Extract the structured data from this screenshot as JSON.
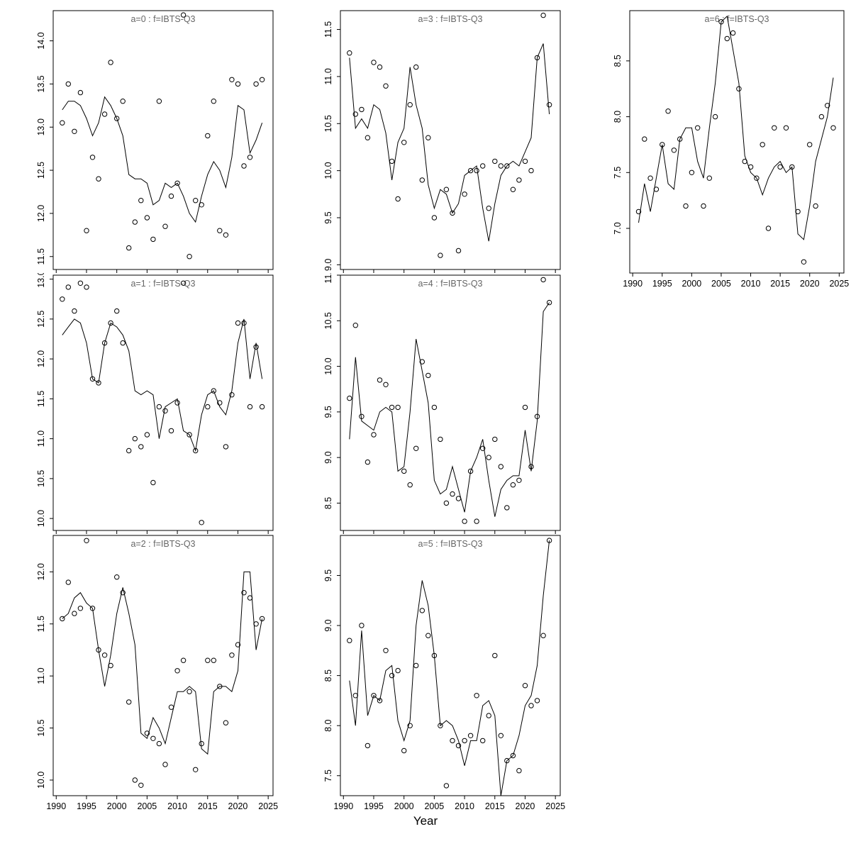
{
  "page": {
    "xlabel": "Year"
  },
  "style": {
    "point_color": "#000000",
    "line_color": "#000000",
    "title_color": "#666666",
    "axis_color": "#000000"
  },
  "chart_data": [
    {
      "type": "scatter",
      "title": "a=0  :  f=IBTS-Q3",
      "xlabel": "Year",
      "xlim": [
        1989.5,
        2025.8
      ],
      "xticks": [
        1990,
        1995,
        2000,
        2005,
        2010,
        2015,
        2020,
        2025
      ],
      "ylim": [
        11.35,
        14.35
      ],
      "yticks": [
        11.5,
        12.0,
        12.5,
        13.0,
        13.5,
        14.0
      ],
      "grid": false,
      "legend": "none",
      "x": [
        1991,
        1992,
        1993,
        1994,
        1995,
        1996,
        1997,
        1998,
        1999,
        2000,
        2001,
        2002,
        2003,
        2004,
        2005,
        2006,
        2007,
        2008,
        2009,
        2010,
        2011,
        2012,
        2013,
        2014,
        2015,
        2016,
        2017,
        2018,
        2019,
        2020,
        2021,
        2022,
        2023,
        2024
      ],
      "series": [
        {
          "name": "observed-index",
          "style": "points",
          "values": [
            13.05,
            13.5,
            12.95,
            13.4,
            11.8,
            12.65,
            12.4,
            13.15,
            13.75,
            13.1,
            13.3,
            11.6,
            11.9,
            12.15,
            11.95,
            11.7,
            13.3,
            11.85,
            12.2,
            12.35,
            14.3,
            11.5,
            12.15,
            12.1,
            12.9,
            13.3,
            11.8,
            11.75,
            13.55,
            13.5,
            12.55,
            12.65,
            13.5,
            13.55
          ]
        },
        {
          "name": "fitted-line",
          "style": "line",
          "values": [
            13.2,
            13.3,
            13.3,
            13.25,
            13.1,
            12.9,
            13.05,
            13.35,
            13.25,
            13.1,
            12.9,
            12.45,
            12.4,
            12.4,
            12.35,
            12.1,
            12.15,
            12.35,
            12.3,
            12.35,
            12.2,
            12.0,
            11.9,
            12.2,
            12.45,
            12.6,
            12.5,
            12.3,
            12.65,
            13.25,
            13.2,
            12.7,
            12.85,
            13.05
          ]
        }
      ]
    },
    {
      "type": "scatter",
      "title": "a=1  :  f=IBTS-Q3",
      "xlabel": "Year",
      "xlim": [
        1989.5,
        2025.8
      ],
      "xticks": [
        1990,
        1995,
        2000,
        2005,
        2010,
        2015,
        2020,
        2025
      ],
      "ylim": [
        9.85,
        13.05
      ],
      "yticks": [
        10.0,
        10.5,
        11.0,
        11.5,
        12.0,
        12.5,
        13.0
      ],
      "grid": false,
      "legend": "none",
      "x": [
        1991,
        1992,
        1993,
        1994,
        1995,
        1996,
        1997,
        1998,
        1999,
        2000,
        2001,
        2002,
        2003,
        2004,
        2005,
        2006,
        2007,
        2008,
        2009,
        2010,
        2011,
        2012,
        2013,
        2014,
        2015,
        2016,
        2017,
        2018,
        2019,
        2020,
        2021,
        2022,
        2023,
        2024
      ],
      "series": [
        {
          "name": "observed-index",
          "style": "points",
          "values": [
            12.75,
            12.9,
            12.6,
            12.95,
            12.9,
            11.75,
            11.7,
            12.2,
            12.45,
            12.6,
            12.2,
            10.85,
            11.0,
            10.9,
            11.05,
            10.45,
            11.4,
            11.35,
            11.1,
            11.45,
            12.95,
            11.05,
            10.85,
            9.95,
            11.4,
            11.6,
            11.45,
            10.9,
            11.55,
            12.45,
            12.45,
            11.4,
            12.15,
            11.4
          ]
        },
        {
          "name": "fitted-line",
          "style": "line",
          "values": [
            12.3,
            12.4,
            12.5,
            12.45,
            12.2,
            11.75,
            11.7,
            12.2,
            12.45,
            12.4,
            12.3,
            12.1,
            11.6,
            11.55,
            11.6,
            11.55,
            11.0,
            11.4,
            11.45,
            11.5,
            11.1,
            11.05,
            10.85,
            11.3,
            11.55,
            11.6,
            11.4,
            11.3,
            11.6,
            12.2,
            12.5,
            11.75,
            12.2,
            11.75
          ]
        }
      ]
    },
    {
      "type": "scatter",
      "title": "a=2  :  f=IBTS-Q3",
      "xlabel": "Year",
      "xlim": [
        1989.5,
        2025.8
      ],
      "xticks": [
        1990,
        1995,
        2000,
        2005,
        2010,
        2015,
        2020,
        2025
      ],
      "ylim": [
        9.85,
        12.35
      ],
      "yticks": [
        10.0,
        10.5,
        11.0,
        11.5,
        12.0
      ],
      "grid": false,
      "legend": "none",
      "x": [
        1991,
        1992,
        1993,
        1994,
        1995,
        1996,
        1997,
        1998,
        1999,
        2000,
        2001,
        2002,
        2003,
        2004,
        2005,
        2006,
        2007,
        2008,
        2009,
        2010,
        2011,
        2012,
        2013,
        2014,
        2015,
        2016,
        2017,
        2018,
        2019,
        2020,
        2021,
        2022,
        2023,
        2024
      ],
      "series": [
        {
          "name": "observed-index",
          "style": "points",
          "values": [
            11.55,
            11.9,
            11.6,
            11.65,
            12.3,
            11.65,
            11.25,
            11.2,
            11.1,
            11.95,
            11.8,
            10.75,
            10.0,
            9.95,
            10.45,
            10.4,
            10.35,
            10.15,
            10.7,
            11.05,
            11.15,
            10.85,
            10.1,
            10.35,
            11.15,
            11.15,
            10.9,
            10.55,
            11.2,
            11.3,
            11.8,
            11.75,
            11.5,
            11.55
          ]
        },
        {
          "name": "fitted-line",
          "style": "line",
          "values": [
            11.55,
            11.6,
            11.75,
            11.8,
            11.7,
            11.65,
            11.25,
            10.9,
            11.2,
            11.6,
            11.85,
            11.6,
            11.3,
            10.45,
            10.4,
            10.6,
            10.5,
            10.35,
            10.6,
            10.85,
            10.85,
            10.9,
            10.85,
            10.3,
            10.25,
            10.85,
            10.9,
            10.9,
            10.85,
            11.05,
            12.0,
            12.0,
            11.25,
            11.55
          ]
        }
      ]
    },
    {
      "type": "scatter",
      "title": "a=3  :  f=IBTS-Q3",
      "xlabel": "Year",
      "xlim": [
        1989.5,
        2025.8
      ],
      "xticks": [
        1990,
        1995,
        2000,
        2005,
        2010,
        2015,
        2020,
        2025
      ],
      "ylim": [
        8.95,
        11.7
      ],
      "yticks": [
        9.0,
        9.5,
        10.0,
        10.5,
        11.0,
        11.5
      ],
      "grid": false,
      "legend": "none",
      "x": [
        1991,
        1992,
        1993,
        1994,
        1995,
        1996,
        1997,
        1998,
        1999,
        2000,
        2001,
        2002,
        2003,
        2004,
        2005,
        2006,
        2007,
        2008,
        2009,
        2010,
        2011,
        2012,
        2013,
        2014,
        2015,
        2016,
        2017,
        2018,
        2019,
        2020,
        2021,
        2022,
        2023,
        2024
      ],
      "series": [
        {
          "name": "observed-index",
          "style": "points",
          "values": [
            11.25,
            10.6,
            10.65,
            10.35,
            11.15,
            11.1,
            10.9,
            10.1,
            9.7,
            10.3,
            10.7,
            11.1,
            9.9,
            10.35,
            9.5,
            9.1,
            9.8,
            9.55,
            9.15,
            9.75,
            10.0,
            10.0,
            10.05,
            9.6,
            10.1,
            10.05,
            10.05,
            9.8,
            9.9,
            10.1,
            10.0,
            11.2,
            11.65,
            10.7
          ]
        },
        {
          "name": "fitted-line",
          "style": "line",
          "values": [
            11.2,
            10.45,
            10.55,
            10.45,
            10.7,
            10.65,
            10.4,
            9.9,
            10.3,
            10.45,
            11.1,
            10.7,
            10.45,
            9.85,
            9.6,
            9.8,
            9.75,
            9.55,
            9.65,
            9.95,
            10.0,
            10.05,
            9.6,
            9.25,
            9.65,
            9.95,
            10.05,
            10.1,
            10.05,
            10.2,
            10.35,
            11.2,
            11.35,
            10.6
          ]
        }
      ]
    },
    {
      "type": "scatter",
      "title": "a=4  :  f=IBTS-Q3",
      "xlabel": "Year",
      "xlim": [
        1989.5,
        2025.8
      ],
      "xticks": [
        1990,
        1995,
        2000,
        2005,
        2010,
        2015,
        2020,
        2025
      ],
      "ylim": [
        8.2,
        11.0
      ],
      "yticks": [
        8.5,
        9.0,
        9.5,
        10.0,
        10.5,
        11.0
      ],
      "grid": false,
      "legend": "none",
      "x": [
        1991,
        1992,
        1993,
        1994,
        1995,
        1996,
        1997,
        1998,
        1999,
        2000,
        2001,
        2002,
        2003,
        2004,
        2005,
        2006,
        2007,
        2008,
        2009,
        2010,
        2011,
        2012,
        2013,
        2014,
        2015,
        2016,
        2017,
        2018,
        2019,
        2020,
        2021,
        2022,
        2023,
        2024
      ],
      "series": [
        {
          "name": "observed-index",
          "style": "points",
          "values": [
            9.65,
            10.45,
            9.45,
            8.95,
            9.25,
            9.85,
            9.8,
            9.55,
            9.55,
            8.85,
            8.7,
            9.1,
            10.05,
            9.9,
            9.55,
            9.2,
            8.5,
            8.6,
            8.55,
            8.3,
            8.85,
            8.3,
            9.1,
            9.0,
            9.2,
            8.9,
            8.45,
            8.7,
            8.75,
            9.55,
            8.9,
            9.45,
            10.95,
            10.7
          ]
        },
        {
          "name": "fitted-line",
          "style": "line",
          "values": [
            9.2,
            10.1,
            9.4,
            9.35,
            9.3,
            9.5,
            9.55,
            9.5,
            8.85,
            8.9,
            9.5,
            10.3,
            9.95,
            9.6,
            8.75,
            8.6,
            8.65,
            8.9,
            8.65,
            8.4,
            8.85,
            9.0,
            9.2,
            8.75,
            8.35,
            8.65,
            8.75,
            8.8,
            8.8,
            9.3,
            8.85,
            9.4,
            10.6,
            10.7
          ]
        }
      ]
    },
    {
      "type": "scatter",
      "title": "a=5  :  f=IBTS-Q3",
      "xlabel": "Year",
      "xlim": [
        1989.5,
        2025.8
      ],
      "xticks": [
        1990,
        1995,
        2000,
        2005,
        2010,
        2015,
        2020,
        2025
      ],
      "ylim": [
        7.3,
        9.9
      ],
      "yticks": [
        7.5,
        8.0,
        8.5,
        9.0,
        9.5
      ],
      "grid": false,
      "legend": "none",
      "x": [
        1991,
        1992,
        1993,
        1994,
        1995,
        1996,
        1997,
        1998,
        1999,
        2000,
        2001,
        2002,
        2003,
        2004,
        2005,
        2006,
        2007,
        2008,
        2009,
        2010,
        2011,
        2012,
        2013,
        2014,
        2015,
        2016,
        2017,
        2018,
        2019,
        2020,
        2021,
        2022,
        2023,
        2024
      ],
      "series": [
        {
          "name": "observed-index",
          "style": "points",
          "values": [
            8.85,
            8.3,
            9.0,
            7.8,
            8.3,
            8.25,
            8.75,
            8.5,
            8.55,
            7.75,
            8.0,
            8.6,
            9.15,
            8.9,
            8.7,
            8.0,
            7.4,
            7.85,
            7.8,
            7.85,
            7.9,
            8.3,
            7.85,
            8.1,
            8.7,
            7.9,
            7.65,
            7.7,
            7.55,
            8.4,
            8.2,
            8.25,
            8.9,
            9.85
          ]
        },
        {
          "name": "fitted-line",
          "style": "line",
          "values": [
            8.45,
            8.0,
            8.95,
            8.1,
            8.3,
            8.25,
            8.55,
            8.6,
            8.05,
            7.85,
            8.05,
            9.0,
            9.45,
            9.2,
            8.7,
            8.0,
            8.05,
            8.0,
            7.85,
            7.6,
            7.85,
            7.85,
            8.2,
            8.25,
            8.1,
            7.3,
            7.65,
            7.7,
            7.9,
            8.2,
            8.3,
            8.6,
            9.3,
            9.85
          ]
        }
      ]
    },
    {
      "type": "scatter",
      "title": "a=6  :  f=IBTS-Q3",
      "xlabel": "Year",
      "xlim": [
        1989.5,
        2025.8
      ],
      "xticks": [
        1990,
        1995,
        2000,
        2005,
        2010,
        2015,
        2020,
        2025
      ],
      "ylim": [
        6.6,
        8.95
      ],
      "yticks": [
        7.0,
        7.5,
        8.0,
        8.5
      ],
      "grid": false,
      "legend": "none",
      "x": [
        1991,
        1992,
        1993,
        1994,
        1995,
        1996,
        1997,
        1998,
        1999,
        2000,
        2001,
        2002,
        2003,
        2004,
        2005,
        2006,
        2007,
        2008,
        2009,
        2010,
        2011,
        2012,
        2013,
        2014,
        2015,
        2016,
        2017,
        2018,
        2019,
        2020,
        2021,
        2022,
        2023,
        2024
      ],
      "series": [
        {
          "name": "observed-index",
          "style": "points",
          "values": [
            7.15,
            7.8,
            7.45,
            7.35,
            7.75,
            8.05,
            7.7,
            7.8,
            7.2,
            7.5,
            7.9,
            7.2,
            7.45,
            8.0,
            8.85,
            8.7,
            8.75,
            8.25,
            7.6,
            7.55,
            7.45,
            7.75,
            7.0,
            7.9,
            7.55,
            7.9,
            7.55,
            7.15,
            6.7,
            7.75,
            7.2,
            8.0,
            8.1,
            7.9
          ]
        },
        {
          "name": "fitted-line",
          "style": "line",
          "values": [
            7.05,
            7.4,
            7.15,
            7.45,
            7.75,
            7.4,
            7.35,
            7.8,
            7.9,
            7.9,
            7.6,
            7.45,
            7.9,
            8.3,
            8.85,
            8.9,
            8.6,
            8.3,
            7.65,
            7.5,
            7.45,
            7.3,
            7.45,
            7.55,
            7.6,
            7.5,
            7.55,
            6.95,
            6.9,
            7.2,
            7.6,
            7.8,
            8.0,
            8.35
          ]
        }
      ]
    }
  ]
}
